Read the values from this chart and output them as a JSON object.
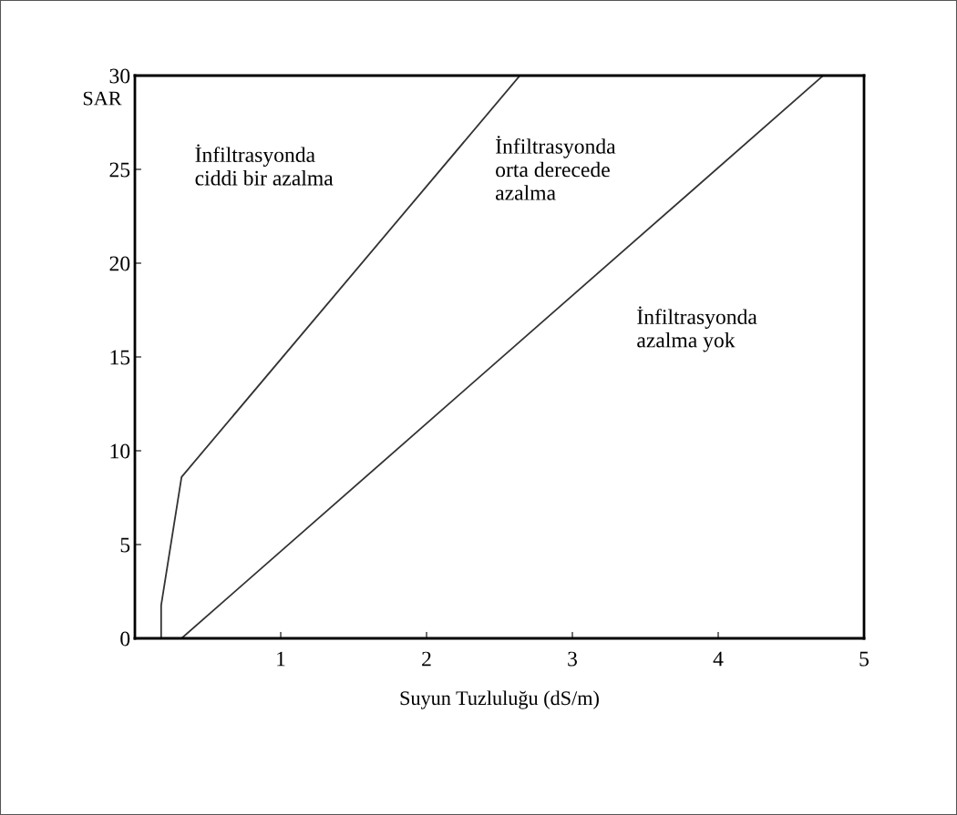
{
  "chart_data": {
    "type": "line",
    "xlabel": "Suyun Tuzluluğu (dS/m)",
    "ylabel": "SAR",
    "series": [
      {
        "color": "#333333",
        "x": [
          0.18,
          0.18,
          0.32,
          2.64
        ],
        "values": [
          0,
          1.75,
          8.6,
          30
        ]
      },
      {
        "color": "#333333",
        "x": [
          0.32,
          4.72
        ],
        "values": [
          0,
          30
        ]
      }
    ],
    "xlim": [
      0,
      5
    ],
    "ylim": [
      0,
      30
    ],
    "xticks": [
      {
        "value": 0,
        "label": null
      },
      1,
      2,
      3,
      4,
      5
    ],
    "yticks": [
      0,
      5,
      10,
      15,
      20,
      25,
      30
    ],
    "grid": false,
    "marker": "none",
    "line_style": "solid",
    "annotations": [
      "İnfiltrasyonda\nciddi bir azalma",
      "İnfiltrasyonda\norta derecede\nazalma",
      "İnfiltrasyonda\nazalma yok"
    ]
  }
}
